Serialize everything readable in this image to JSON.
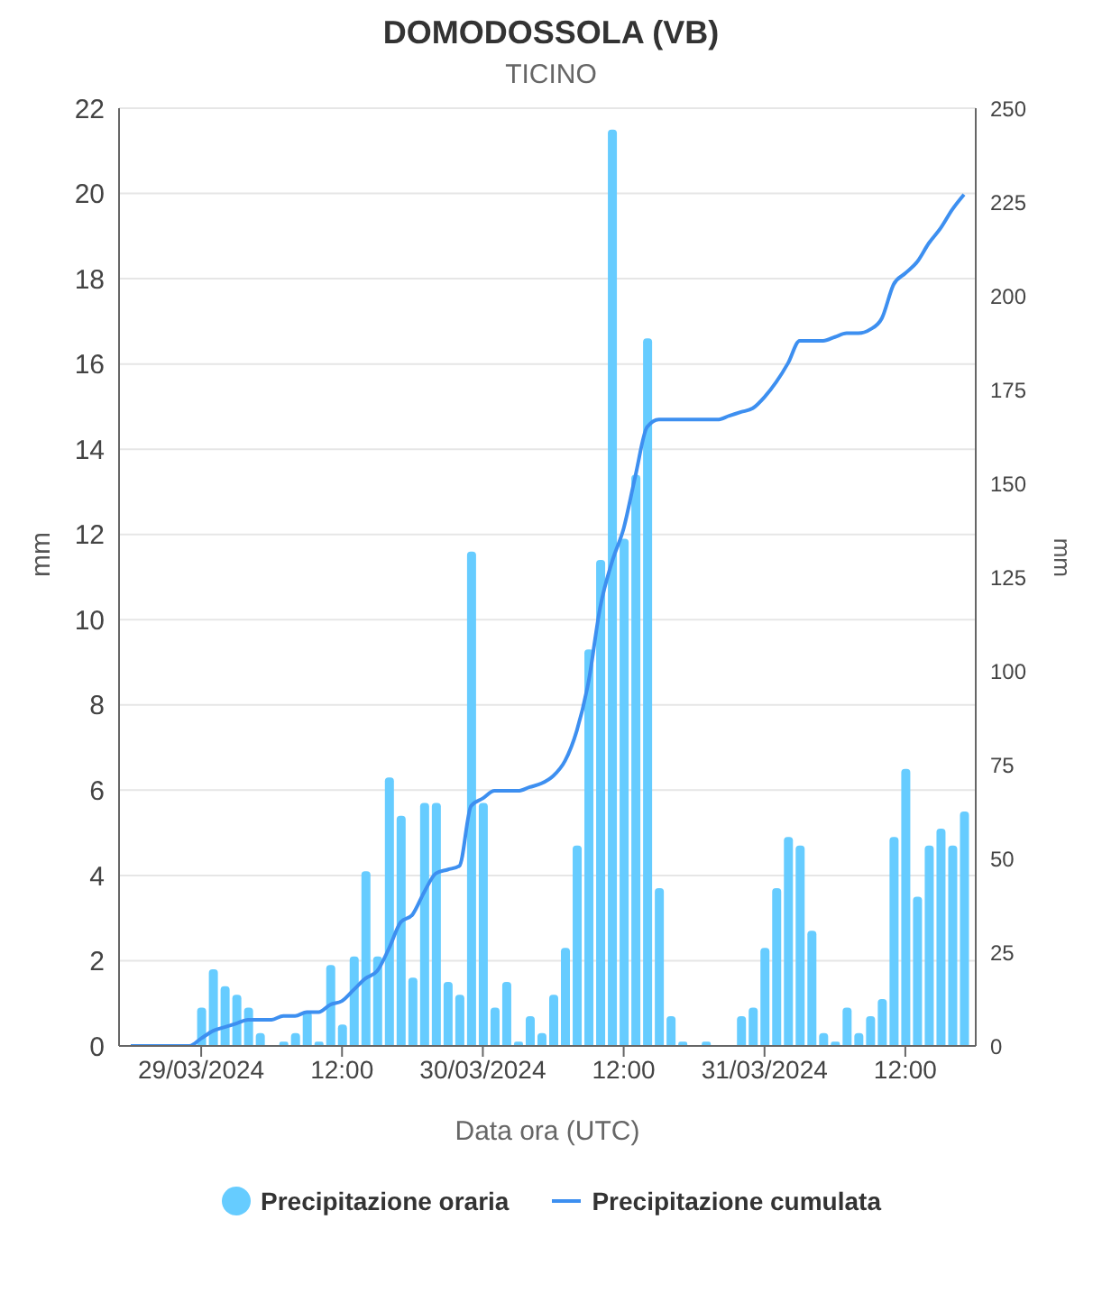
{
  "chart_data": {
    "type": "bar",
    "title": "DOMODOSSOLA (VB)",
    "subtitle": "TICINO",
    "xlabel": "Data ora (UTC)",
    "ylabel": "mm",
    "y2label": "mm",
    "x": [
      "2024-03-28T18:00",
      "2024-03-28T19:00",
      "2024-03-28T20:00",
      "2024-03-28T21:00",
      "2024-03-28T22:00",
      "2024-03-28T23:00",
      "2024-03-29T00:00",
      "2024-03-29T01:00",
      "2024-03-29T02:00",
      "2024-03-29T03:00",
      "2024-03-29T04:00",
      "2024-03-29T05:00",
      "2024-03-29T06:00",
      "2024-03-29T07:00",
      "2024-03-29T08:00",
      "2024-03-29T09:00",
      "2024-03-29T10:00",
      "2024-03-29T11:00",
      "2024-03-29T12:00",
      "2024-03-29T13:00",
      "2024-03-29T14:00",
      "2024-03-29T15:00",
      "2024-03-29T16:00",
      "2024-03-29T17:00",
      "2024-03-29T18:00",
      "2024-03-29T19:00",
      "2024-03-29T20:00",
      "2024-03-29T21:00",
      "2024-03-29T22:00",
      "2024-03-29T23:00",
      "2024-03-30T00:00",
      "2024-03-30T01:00",
      "2024-03-30T02:00",
      "2024-03-30T03:00",
      "2024-03-30T04:00",
      "2024-03-30T05:00",
      "2024-03-30T06:00",
      "2024-03-30T07:00",
      "2024-03-30T08:00",
      "2024-03-30T09:00",
      "2024-03-30T10:00",
      "2024-03-30T11:00",
      "2024-03-30T12:00",
      "2024-03-30T13:00",
      "2024-03-30T14:00",
      "2024-03-30T15:00",
      "2024-03-30T16:00",
      "2024-03-30T17:00",
      "2024-03-30T18:00",
      "2024-03-30T19:00",
      "2024-03-30T20:00",
      "2024-03-30T21:00",
      "2024-03-30T22:00",
      "2024-03-30T23:00",
      "2024-03-31T00:00",
      "2024-03-31T01:00",
      "2024-03-31T02:00",
      "2024-03-31T03:00",
      "2024-03-31T04:00",
      "2024-03-31T05:00",
      "2024-03-31T06:00",
      "2024-03-31T07:00",
      "2024-03-31T08:00",
      "2024-03-31T09:00",
      "2024-03-31T10:00",
      "2024-03-31T11:00",
      "2024-03-31T12:00",
      "2024-03-31T13:00",
      "2024-03-31T14:00",
      "2024-03-31T15:00",
      "2024-03-31T16:00",
      "2024-03-31T17:00"
    ],
    "series": [
      {
        "name": "Precipitazione oraria",
        "color": "#66ccff",
        "values": [
          0,
          0,
          0,
          0,
          0,
          0,
          0.9,
          1.8,
          1.4,
          1.2,
          0.9,
          0.3,
          0,
          0.1,
          0.3,
          0.8,
          0.1,
          1.9,
          0.5,
          2.1,
          4.1,
          2.1,
          6.3,
          5.4,
          1.6,
          5.7,
          5.7,
          1.5,
          1.2,
          11.6,
          5.7,
          0.9,
          1.5,
          0.1,
          0.7,
          0.3,
          1.2,
          2.3,
          4.7,
          9.3,
          11.4,
          21.5,
          11.9,
          13.4,
          16.6,
          3.7,
          0.7,
          0.1,
          0,
          0.1,
          0,
          0,
          0.7,
          0.9,
          2.3,
          3.7,
          4.9,
          4.7,
          2.7,
          0.3,
          0.1,
          0.9,
          0.3,
          0.7,
          1.1,
          4.9,
          6.5,
          3.5,
          4.7,
          5.1,
          4.7,
          5.5
        ]
      },
      {
        "name": "Precipitazione cumulata",
        "type": "line",
        "axis": "y2",
        "color": "#3d8ff0",
        "values": [
          0,
          0,
          0,
          0,
          0,
          0,
          2,
          4,
          5,
          6,
          7,
          7,
          7,
          8,
          8,
          9,
          9,
          11,
          12,
          15,
          18,
          20,
          26,
          33,
          35,
          41,
          46,
          47,
          48,
          64,
          66,
          68,
          68,
          68,
          69,
          70,
          72,
          76,
          84,
          97,
          117,
          129,
          138,
          152,
          165,
          167,
          167,
          167,
          167,
          167,
          167,
          168,
          169,
          170,
          173,
          177,
          182,
          188,
          188,
          188,
          189,
          190,
          190,
          191,
          194,
          203,
          206,
          209,
          214,
          218,
          223,
          227
        ]
      }
    ],
    "xlim": [
      "2024-03-28T17:00",
      "2024-03-31T18:00"
    ],
    "xticks": [
      {
        "value": "2024-03-29T00:00",
        "label": "29/03/2024"
      },
      {
        "value": "2024-03-29T12:00",
        "label": "12:00"
      },
      {
        "value": "2024-03-30T00:00",
        "label": "30/03/2024"
      },
      {
        "value": "2024-03-30T12:00",
        "label": "12:00"
      },
      {
        "value": "2024-03-31T00:00",
        "label": "31/03/2024"
      },
      {
        "value": "2024-03-31T12:00",
        "label": "12:00"
      }
    ],
    "ylim": [
      0,
      22
    ],
    "yticks": [
      0,
      2,
      4,
      6,
      8,
      10,
      12,
      14,
      16,
      18,
      20,
      22
    ],
    "y2lim": [
      0,
      250
    ],
    "y2ticks": [
      0,
      25,
      50,
      75,
      100,
      125,
      150,
      175,
      200,
      225,
      250
    ],
    "grid": "y",
    "legend": "bottom",
    "marker": "none",
    "line_style": "solid"
  }
}
